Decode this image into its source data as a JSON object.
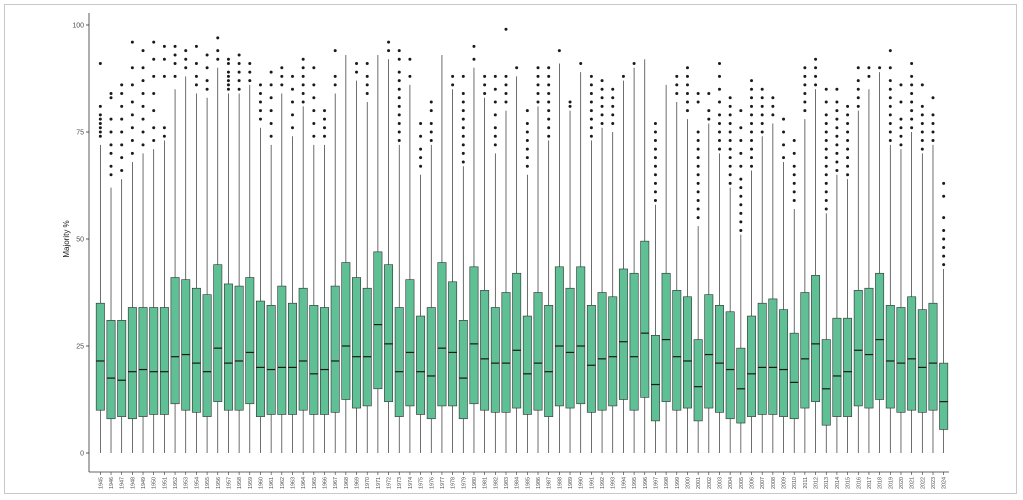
{
  "chart_data": {
    "type": "box",
    "title": "",
    "xlabel": "",
    "ylabel": "Majority %",
    "ylim": [
      0,
      100
    ],
    "yticks": [
      0,
      25,
      50,
      75,
      100
    ],
    "fill_color": "#5fbf95",
    "stroke_color": "#2f2f2f",
    "outlier_color": "#1a1a1a",
    "grid": false,
    "legend": "none",
    "boxes": [
      {
        "year": "1945",
        "q1": 10,
        "median": 21.5,
        "q3": 35,
        "max": 72,
        "outliers": [
          74,
          75,
          76,
          77,
          78,
          79,
          81,
          91
        ]
      },
      {
        "year": "1946",
        "q1": 8,
        "median": 17.5,
        "q3": 31,
        "max": 62,
        "outliers": [
          65,
          67,
          70,
          72,
          75,
          78,
          83,
          84
        ]
      },
      {
        "year": "1947",
        "q1": 8.5,
        "median": 17,
        "q3": 31,
        "max": 64,
        "outliers": [
          66,
          69,
          72,
          75,
          78,
          81,
          84,
          86
        ]
      },
      {
        "year": "1948",
        "q1": 8,
        "median": 19,
        "q3": 34,
        "max": 68,
        "outliers": [
          70,
          73,
          76,
          79,
          82,
          86,
          90,
          96
        ]
      },
      {
        "year": "1949",
        "q1": 8.5,
        "median": 19.5,
        "q3": 34,
        "max": 70,
        "outliers": [
          72,
          75,
          78,
          81,
          84,
          87,
          90,
          94
        ]
      },
      {
        "year": "1950",
        "q1": 9,
        "median": 19,
        "q3": 34,
        "max": 71,
        "outliers": [
          73,
          76,
          80,
          84,
          88,
          92,
          96
        ]
      },
      {
        "year": "1951",
        "q1": 9,
        "median": 19,
        "q3": 34,
        "max": 73,
        "outliers": [
          74,
          76,
          88,
          92,
          95
        ]
      },
      {
        "year": "1952",
        "q1": 11.5,
        "median": 22.5,
        "q3": 41,
        "max": 85,
        "outliers": [
          88,
          91,
          93,
          95
        ]
      },
      {
        "year": "1953",
        "q1": 10,
        "median": 23,
        "q3": 40.5,
        "max": 88,
        "outliers": [
          90,
          92,
          94
        ]
      },
      {
        "year": "1954",
        "q1": 9.5,
        "median": 21,
        "q3": 38.5,
        "max": 84,
        "outliers": [
          86,
          88,
          91,
          95
        ]
      },
      {
        "year": "1955",
        "q1": 8.5,
        "median": 19,
        "q3": 37,
        "max": 83,
        "outliers": [
          85,
          87,
          90,
          93
        ]
      },
      {
        "year": "1956",
        "q1": 12,
        "median": 24.5,
        "q3": 44,
        "max": 90,
        "outliers": [
          92,
          94,
          97
        ]
      },
      {
        "year": "1957",
        "q1": 10,
        "median": 21,
        "q3": 39.5,
        "max": 84,
        "outliers": [
          85,
          86,
          87,
          88,
          89,
          91,
          92
        ]
      },
      {
        "year": "1958",
        "q1": 10,
        "median": 21.5,
        "q3": 39,
        "max": 84,
        "outliers": [
          85,
          87,
          89,
          91,
          93
        ]
      },
      {
        "year": "1959",
        "q1": 11.5,
        "median": 23.5,
        "q3": 41,
        "max": 86,
        "outliers": [
          87,
          89,
          91
        ]
      },
      {
        "year": "1960",
        "q1": 8.5,
        "median": 20,
        "q3": 35.5,
        "max": 76,
        "outliers": [
          78,
          80,
          82,
          84,
          86
        ]
      },
      {
        "year": "1961",
        "q1": 9,
        "median": 19.5,
        "q3": 34.5,
        "max": 72,
        "outliers": [
          74,
          77,
          80,
          83,
          86,
          89
        ]
      },
      {
        "year": "1962",
        "q1": 9,
        "median": 20,
        "q3": 39,
        "max": 84,
        "outliers": [
          86,
          88,
          90
        ]
      },
      {
        "year": "1963",
        "q1": 9,
        "median": 20,
        "q3": 35,
        "max": 74,
        "outliers": [
          76,
          79,
          82,
          85,
          88
        ]
      },
      {
        "year": "1964",
        "q1": 10,
        "median": 21.5,
        "q3": 38.5,
        "max": 81,
        "outliers": [
          82,
          84,
          86,
          88,
          90,
          92
        ]
      },
      {
        "year": "1965",
        "q1": 9,
        "median": 18.5,
        "q3": 34.5,
        "max": 72,
        "outliers": [
          74,
          77,
          80,
          83,
          86,
          90
        ]
      },
      {
        "year": "1966",
        "q1": 9,
        "median": 19.5,
        "q3": 34,
        "max": 72,
        "outliers": [
          74,
          76,
          78,
          80
        ]
      },
      {
        "year": "1967",
        "q1": 9.5,
        "median": 21.5,
        "q3": 39,
        "max": 84,
        "outliers": [
          86,
          88,
          94
        ]
      },
      {
        "year": "1968",
        "q1": 12.5,
        "median": 25,
        "q3": 44.5,
        "max": 93,
        "outliers": []
      },
      {
        "year": "1969",
        "q1": 10.5,
        "median": 22.5,
        "q3": 41,
        "max": 87,
        "outliers": [
          89,
          91
        ]
      },
      {
        "year": "1970",
        "q1": 11,
        "median": 22.5,
        "q3": 38.5,
        "max": 82,
        "outliers": [
          84,
          86,
          88,
          91
        ]
      },
      {
        "year": "1971",
        "q1": 15,
        "median": 30,
        "q3": 47,
        "max": 93,
        "outliers": []
      },
      {
        "year": "1972",
        "q1": 12,
        "median": 25.5,
        "q3": 44,
        "max": 92,
        "outliers": [
          94,
          96
        ]
      },
      {
        "year": "1973",
        "q1": 8.5,
        "median": 19,
        "q3": 34,
        "max": 72,
        "outliers": [
          73,
          75,
          77,
          79,
          81,
          83,
          85,
          87,
          89,
          92,
          94
        ]
      },
      {
        "year": "1974",
        "q1": 11,
        "median": 23.5,
        "q3": 40.5,
        "max": 86,
        "outliers": [
          88,
          92
        ]
      },
      {
        "year": "1975",
        "q1": 9,
        "median": 19,
        "q3": 32,
        "max": 65,
        "outliers": [
          67,
          69,
          71,
          74,
          77
        ]
      },
      {
        "year": "1976",
        "q1": 8,
        "median": 18,
        "q3": 34,
        "max": 72,
        "outliers": [
          73,
          75,
          77,
          80,
          82
        ]
      },
      {
        "year": "1977",
        "q1": 11,
        "median": 24.5,
        "q3": 44.5,
        "max": 93,
        "outliers": []
      },
      {
        "year": "1978",
        "q1": 11,
        "median": 23.5,
        "q3": 40,
        "max": 85,
        "outliers": [
          86,
          88
        ]
      },
      {
        "year": "1979",
        "q1": 8,
        "median": 17.5,
        "q3": 31,
        "max": 67,
        "outliers": [
          68,
          70,
          72,
          74,
          76,
          78,
          80,
          82,
          84,
          88
        ]
      },
      {
        "year": "1980",
        "q1": 11.5,
        "median": 25.5,
        "q3": 43.5,
        "max": 90,
        "outliers": [
          92,
          95
        ]
      },
      {
        "year": "1981",
        "q1": 10,
        "median": 22,
        "q3": 38,
        "max": 83,
        "outliers": [
          84,
          86,
          88
        ]
      },
      {
        "year": "1982",
        "q1": 9.5,
        "median": 21,
        "q3": 34,
        "max": 70,
        "outliers": [
          72,
          74,
          76,
          79,
          82,
          85,
          88
        ]
      },
      {
        "year": "1983",
        "q1": 9.5,
        "median": 21,
        "q3": 37.5,
        "max": 80,
        "outliers": [
          82,
          84,
          86,
          88,
          99
        ]
      },
      {
        "year": "1984",
        "q1": 10.5,
        "median": 24,
        "q3": 42,
        "max": 88,
        "outliers": [
          90
        ]
      },
      {
        "year": "1985",
        "q1": 9,
        "median": 18.5,
        "q3": 32,
        "max": 65,
        "outliers": [
          67,
          69,
          71,
          73,
          75,
          77,
          80
        ]
      },
      {
        "year": "1986",
        "q1": 10,
        "median": 21,
        "q3": 37.5,
        "max": 81,
        "outliers": [
          82,
          84,
          86,
          88,
          90
        ]
      },
      {
        "year": "1987",
        "q1": 8.5,
        "median": 19,
        "q3": 34.5,
        "max": 73,
        "outliers": [
          74,
          76,
          78,
          80,
          82,
          84,
          86,
          88,
          90
        ]
      },
      {
        "year": "1988",
        "q1": 11,
        "median": 25,
        "q3": 43.5,
        "max": 91,
        "outliers": [
          94
        ]
      },
      {
        "year": "1989",
        "q1": 10.5,
        "median": 23.5,
        "q3": 38.5,
        "max": 80,
        "outliers": [
          81,
          82
        ]
      },
      {
        "year": "1990",
        "q1": 11.5,
        "median": 25,
        "q3": 43.5,
        "max": 89,
        "outliers": [
          91
        ]
      },
      {
        "year": "1991",
        "q1": 9.5,
        "median": 20.5,
        "q3": 34.5,
        "max": 73,
        "outliers": [
          74,
          76,
          78,
          80,
          82,
          84,
          86,
          88
        ]
      },
      {
        "year": "1992",
        "q1": 10,
        "median": 22,
        "q3": 37.5,
        "max": 76,
        "outliers": [
          77,
          79,
          81,
          83,
          85,
          87
        ]
      },
      {
        "year": "1993",
        "q1": 11,
        "median": 22.5,
        "q3": 36.5,
        "max": 75,
        "outliers": [
          77,
          79,
          81,
          83,
          85
        ]
      },
      {
        "year": "1994",
        "q1": 12.5,
        "median": 26,
        "q3": 43,
        "max": 87,
        "outliers": [
          88
        ]
      },
      {
        "year": "1995",
        "q1": 10,
        "median": 22.5,
        "q3": 42,
        "max": 90,
        "outliers": [
          91
        ]
      },
      {
        "year": "1996",
        "q1": 13,
        "median": 28,
        "q3": 49.5,
        "max": 92,
        "outliers": []
      },
      {
        "year": "1997",
        "q1": 7.5,
        "median": 16,
        "q3": 27.5,
        "max": 58,
        "outliers": [
          59,
          61,
          63,
          65,
          67,
          69,
          71,
          73,
          75,
          77
        ]
      },
      {
        "year": "1998",
        "q1": 12,
        "median": 26.5,
        "q3": 42,
        "max": 86,
        "outliers": []
      },
      {
        "year": "1999",
        "q1": 10,
        "median": 22.5,
        "q3": 38,
        "max": 82,
        "outliers": [
          84,
          86,
          88
        ]
      },
      {
        "year": "2000",
        "q1": 10.5,
        "median": 21.5,
        "q3": 36.5,
        "max": 78,
        "outliers": [
          80,
          82,
          84,
          86,
          88,
          90
        ]
      },
      {
        "year": "2001",
        "q1": 7.5,
        "median": 15.5,
        "q3": 26.5,
        "max": 53,
        "outliers": [
          55,
          57,
          59,
          61,
          63,
          65,
          67,
          69,
          71,
          73,
          75,
          82,
          84
        ]
      },
      {
        "year": "2002",
        "q1": 10.5,
        "median": 23,
        "q3": 37,
        "max": 77,
        "outliers": [
          78,
          80,
          84
        ]
      },
      {
        "year": "2003",
        "q1": 9.5,
        "median": 21,
        "q3": 34.5,
        "max": 70,
        "outliers": [
          71,
          73,
          75,
          77,
          79,
          82,
          85,
          88,
          91
        ]
      },
      {
        "year": "2004",
        "q1": 8,
        "median": 19.5,
        "q3": 33,
        "max": 62,
        "outliers": [
          63,
          65,
          67,
          69,
          71,
          73,
          75,
          77,
          79,
          81,
          83
        ]
      },
      {
        "year": "2005",
        "q1": 7,
        "median": 15,
        "q3": 24.5,
        "max": 51,
        "outliers": [
          52,
          54,
          56,
          58,
          60,
          62,
          64,
          67,
          70,
          73,
          76,
          80
        ]
      },
      {
        "year": "2006",
        "q1": 8.5,
        "median": 18.5,
        "q3": 32,
        "max": 66,
        "outliers": [
          67,
          69,
          71,
          73,
          75,
          77,
          79,
          81,
          83,
          85,
          87
        ]
      },
      {
        "year": "2007",
        "q1": 9,
        "median": 20,
        "q3": 35,
        "max": 74,
        "outliers": [
          75,
          77,
          79,
          81,
          83,
          85
        ]
      },
      {
        "year": "2008",
        "q1": 9,
        "median": 20,
        "q3": 36,
        "max": 77,
        "outliers": [
          79,
          81,
          83
        ]
      },
      {
        "year": "2009",
        "q1": 8.5,
        "median": 19.5,
        "q3": 33.5,
        "max": 68,
        "outliers": [
          69,
          72,
          75,
          78
        ]
      },
      {
        "year": "2010",
        "q1": 8,
        "median": 16.5,
        "q3": 28,
        "max": 57,
        "outliers": [
          59,
          61,
          63,
          65,
          67,
          70,
          73
        ]
      },
      {
        "year": "2011",
        "q1": 10.5,
        "median": 22,
        "q3": 37.5,
        "max": 78,
        "outliers": [
          80,
          82,
          84,
          86,
          88,
          90
        ]
      },
      {
        "year": "2012",
        "q1": 12,
        "median": 25.5,
        "q3": 41.5,
        "max": 85,
        "outliers": [
          86,
          88,
          90,
          92
        ]
      },
      {
        "year": "2013",
        "q1": 6.5,
        "median": 15,
        "q3": 26.5,
        "max": 56,
        "outliers": [
          57,
          59,
          61,
          63,
          65,
          67,
          69,
          71,
          73,
          75,
          77,
          79,
          82,
          85
        ]
      },
      {
        "year": "2014",
        "q1": 8.5,
        "median": 18,
        "q3": 31.5,
        "max": 65,
        "outliers": [
          66,
          68,
          70,
          72,
          74,
          76,
          78,
          80,
          82,
          85
        ]
      },
      {
        "year": "2015",
        "q1": 8.5,
        "median": 19,
        "q3": 31.5,
        "max": 64,
        "outliers": [
          65,
          67,
          69,
          71,
          73,
          75,
          77,
          79,
          81
        ]
      },
      {
        "year": "2016",
        "q1": 11,
        "median": 24,
        "q3": 38,
        "max": 80,
        "outliers": [
          81,
          83,
          85,
          87,
          90
        ]
      },
      {
        "year": "2017",
        "q1": 10.5,
        "median": 23,
        "q3": 38.5,
        "max": 85,
        "outliers": [
          88,
          90
        ]
      },
      {
        "year": "2018",
        "q1": 12.5,
        "median": 26.5,
        "q3": 42,
        "max": 89,
        "outliers": [
          90
        ]
      },
      {
        "year": "2019",
        "q1": 10.5,
        "median": 21.5,
        "q3": 34.5,
        "max": 72,
        "outliers": [
          73,
          75,
          77,
          79,
          81,
          83,
          85,
          87,
          90,
          94
        ]
      },
      {
        "year": "2020",
        "q1": 9.5,
        "median": 21,
        "q3": 34,
        "max": 71,
        "outliers": [
          72,
          74,
          76,
          78,
          82,
          86
        ]
      },
      {
        "year": "2021",
        "q1": 10,
        "median": 22,
        "q3": 36.5,
        "max": 75,
        "outliers": [
          76,
          78,
          80,
          82,
          84,
          86,
          88,
          91
        ]
      },
      {
        "year": "2022",
        "q1": 9.5,
        "median": 20,
        "q3": 33.5,
        "max": 70,
        "outliers": [
          71,
          73,
          75,
          77,
          79,
          81,
          86
        ]
      },
      {
        "year": "2023",
        "q1": 10,
        "median": 21,
        "q3": 35,
        "max": 72,
        "outliers": [
          73,
          75,
          77,
          79,
          83
        ]
      },
      {
        "year": "2024",
        "q1": 5.5,
        "median": 12,
        "q3": 21,
        "max": 43,
        "outliers": [
          44,
          46,
          48,
          50,
          52,
          55,
          60,
          63
        ]
      }
    ]
  }
}
